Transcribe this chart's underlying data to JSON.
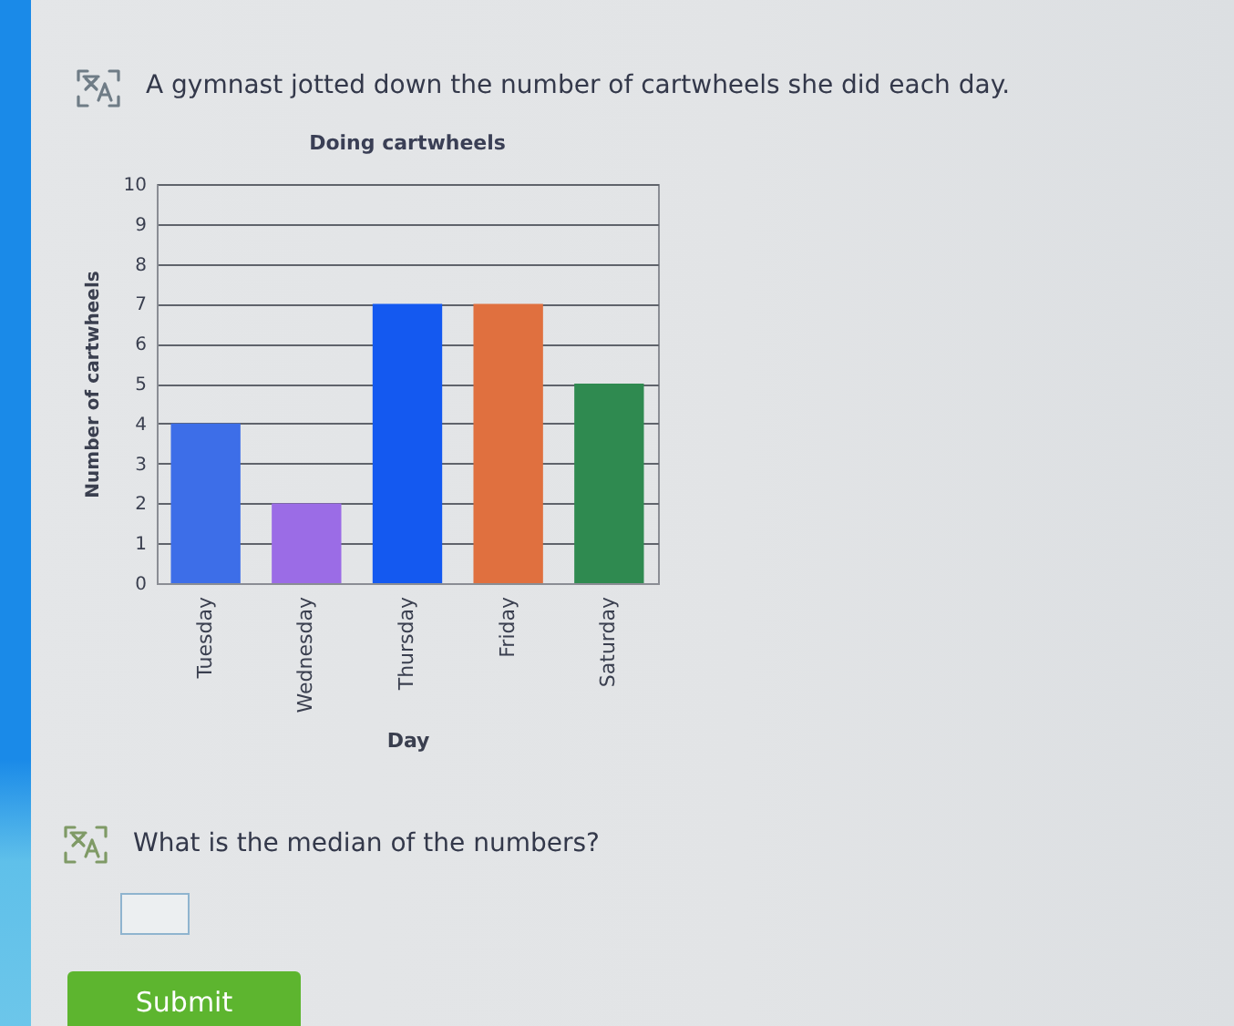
{
  "chart_data": {
    "type": "bar",
    "title": "Doing cartwheels",
    "xlabel": "Day",
    "ylabel": "Number of cartwheels",
    "categories": [
      "Tuesday",
      "Wednesday",
      "Thursday",
      "Friday",
      "Saturday"
    ],
    "values": [
      4,
      2,
      7,
      7,
      5
    ],
    "colors": [
      "#3d6ee8",
      "#9b6ce6",
      "#1459f0",
      "#e0703f",
      "#2f8a50"
    ],
    "ylim": [
      0,
      10
    ],
    "yticks": [
      0,
      1,
      2,
      3,
      4,
      5,
      6,
      7,
      8,
      9,
      10
    ],
    "grid": "y",
    "annotations": [
      "A gymnast jotted down the number of cartwheels she did each day.",
      "What is the median of the numbers?",
      "Submit"
    ]
  }
}
